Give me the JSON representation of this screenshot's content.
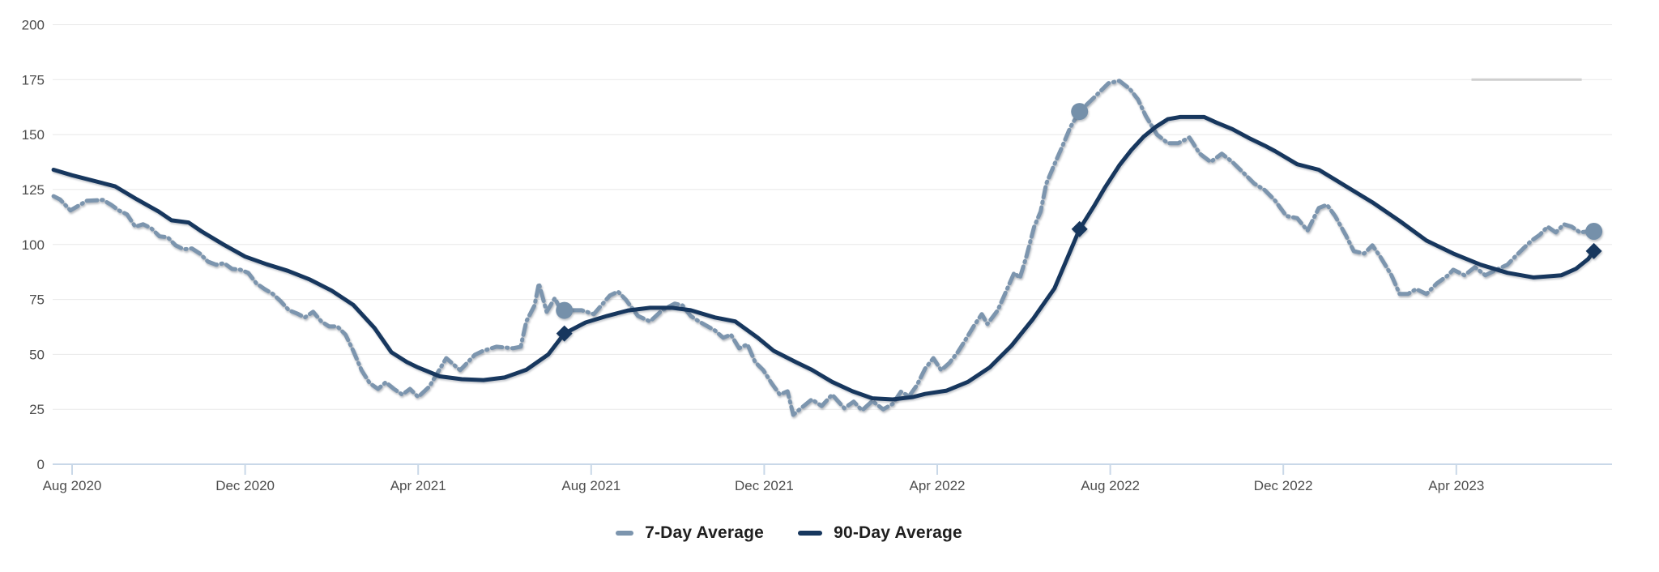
{
  "chart_data": {
    "type": "line",
    "title": "",
    "x_axis": {
      "tick_labels": [
        "Aug 2020",
        "Dec 2020",
        "Apr 2021",
        "Aug 2021",
        "Dec 2021",
        "Apr 2022",
        "Aug 2022",
        "Dec 2022",
        "Apr 2023"
      ],
      "tick_positions_months": [
        0,
        4,
        8,
        12,
        16,
        20,
        24,
        28,
        32
      ],
      "range_months": [
        -0.45,
        35.6
      ]
    },
    "y_axis": {
      "min": 0,
      "max": 200,
      "step": 25,
      "tick_labels": [
        "0",
        "25",
        "50",
        "75",
        "100",
        "125",
        "150",
        "175",
        "200"
      ]
    },
    "grid": true,
    "legend_position": "bottom",
    "series": [
      {
        "name": "7-Day Average",
        "style": "dashed",
        "color": "#7C95AE",
        "points": [
          [
            -0.43,
            122
          ],
          [
            -0.28,
            120.5
          ],
          [
            -0.04,
            115.5
          ],
          [
            0.34,
            119.9
          ],
          [
            0.71,
            120.3
          ],
          [
            0.9,
            118.1
          ],
          [
            1.08,
            115.5
          ],
          [
            1.27,
            113.7
          ],
          [
            1.46,
            108.1
          ],
          [
            1.64,
            109.2
          ],
          [
            1.83,
            107.4
          ],
          [
            2.02,
            103.7
          ],
          [
            2.21,
            103.3
          ],
          [
            2.39,
            99.6
          ],
          [
            2.58,
            97.8
          ],
          [
            2.77,
            98.2
          ],
          [
            2.95,
            95.9
          ],
          [
            3.14,
            92.2
          ],
          [
            3.33,
            90.8
          ],
          [
            3.51,
            91.5
          ],
          [
            3.7,
            88.9
          ],
          [
            3.89,
            88.5
          ],
          [
            4.07,
            87.1
          ],
          [
            4.26,
            82.3
          ],
          [
            4.45,
            79.7
          ],
          [
            4.64,
            77.5
          ],
          [
            4.82,
            74.2
          ],
          [
            5.01,
            70.1
          ],
          [
            5.2,
            68.6
          ],
          [
            5.38,
            66.8
          ],
          [
            5.57,
            69.4
          ],
          [
            5.76,
            65
          ],
          [
            5.94,
            62.7
          ],
          [
            6.13,
            62.7
          ],
          [
            6.32,
            59
          ],
          [
            6.5,
            51.6
          ],
          [
            6.69,
            42.8
          ],
          [
            6.88,
            36.9
          ],
          [
            7.07,
            34.3
          ],
          [
            7.25,
            37.3
          ],
          [
            7.44,
            34.3
          ],
          [
            7.63,
            31.7
          ],
          [
            7.81,
            34.3
          ],
          [
            8.0,
            30.6
          ],
          [
            8.26,
            35.4
          ],
          [
            8.65,
            48.3
          ],
          [
            8.97,
            42.8
          ],
          [
            9.31,
            49.8
          ],
          [
            9.5,
            51.6
          ],
          [
            9.81,
            53.5
          ],
          [
            10.19,
            52.8
          ],
          [
            10.37,
            53.5
          ],
          [
            10.5,
            65
          ],
          [
            10.69,
            72.3
          ],
          [
            10.79,
            82.3
          ],
          [
            10.97,
            69.4
          ],
          [
            11.16,
            75.6
          ],
          [
            11.27,
            71.2
          ],
          [
            11.4,
            70.1
          ],
          [
            11.78,
            70.1
          ],
          [
            12.06,
            68.3
          ],
          [
            12.43,
            76.8
          ],
          [
            12.62,
            78.6
          ],
          [
            12.8,
            74.9
          ],
          [
            13.08,
            67.5
          ],
          [
            13.36,
            65
          ],
          [
            13.64,
            70.1
          ],
          [
            13.93,
            73.1
          ],
          [
            14.11,
            72.3
          ],
          [
            14.3,
            67.5
          ],
          [
            14.49,
            65
          ],
          [
            14.86,
            60.9
          ],
          [
            15.05,
            57.6
          ],
          [
            15.23,
            59
          ],
          [
            15.42,
            52.8
          ],
          [
            15.61,
            54.6
          ],
          [
            15.79,
            46.5
          ],
          [
            15.98,
            42.8
          ],
          [
            16.17,
            36.9
          ],
          [
            16.36,
            31.7
          ],
          [
            16.54,
            33.2
          ],
          [
            16.67,
            22.5
          ],
          [
            16.88,
            26
          ],
          [
            17.1,
            29.5
          ],
          [
            17.33,
            26.5
          ],
          [
            17.57,
            31.7
          ],
          [
            17.85,
            25.5
          ],
          [
            18.07,
            28.5
          ],
          [
            18.26,
            24.5
          ],
          [
            18.5,
            28.8
          ],
          [
            18.75,
            25
          ],
          [
            18.97,
            27.5
          ],
          [
            19.16,
            33
          ],
          [
            19.35,
            31
          ],
          [
            19.53,
            36
          ],
          [
            19.72,
            43.5
          ],
          [
            19.91,
            48.3
          ],
          [
            20.09,
            42.8
          ],
          [
            20.28,
            46.1
          ],
          [
            20.47,
            50.9
          ],
          [
            20.65,
            56.5
          ],
          [
            20.84,
            62.7
          ],
          [
            21.03,
            68.3
          ],
          [
            21.16,
            63.8
          ],
          [
            21.4,
            70.1
          ],
          [
            21.59,
            78.6
          ],
          [
            21.78,
            87.1
          ],
          [
            21.91,
            84.8
          ],
          [
            22.06,
            94.5
          ],
          [
            22.24,
            108
          ],
          [
            22.39,
            115
          ],
          [
            22.52,
            127.7
          ],
          [
            22.71,
            136.5
          ],
          [
            22.9,
            145
          ],
          [
            23.08,
            153.5
          ],
          [
            23.29,
            160.5
          ],
          [
            23.64,
            167.2
          ],
          [
            23.96,
            173.4
          ],
          [
            24.21,
            174.5
          ],
          [
            24.45,
            170.8
          ],
          [
            24.64,
            166
          ],
          [
            24.82,
            158.5
          ],
          [
            25.08,
            150
          ],
          [
            25.33,
            146.1
          ],
          [
            25.57,
            146.1
          ],
          [
            25.83,
            148.7
          ],
          [
            26.07,
            141.3
          ],
          [
            26.32,
            137.6
          ],
          [
            26.58,
            141.3
          ],
          [
            26.82,
            137.6
          ],
          [
            27.07,
            132.8
          ],
          [
            27.33,
            127.7
          ],
          [
            27.57,
            124.8
          ],
          [
            27.81,
            120
          ],
          [
            28.07,
            113
          ],
          [
            28.32,
            112
          ],
          [
            28.56,
            106.3
          ],
          [
            28.82,
            116.6
          ],
          [
            29.01,
            118.1
          ],
          [
            29.2,
            112.9
          ],
          [
            29.44,
            104.4
          ],
          [
            29.63,
            97
          ],
          [
            29.87,
            95.9
          ],
          [
            30.06,
            99.6
          ],
          [
            30.24,
            94.5
          ],
          [
            30.5,
            86
          ],
          [
            30.69,
            77.5
          ],
          [
            30.88,
            77.5
          ],
          [
            31.07,
            79.7
          ],
          [
            31.31,
            77.5
          ],
          [
            31.55,
            82.3
          ],
          [
            31.81,
            86
          ],
          [
            31.93,
            88.5
          ],
          [
            32.19,
            86
          ],
          [
            32.43,
            89.7
          ],
          [
            32.67,
            86
          ],
          [
            32.93,
            88.5
          ],
          [
            33.18,
            90.8
          ],
          [
            33.36,
            94.5
          ],
          [
            33.55,
            98.2
          ],
          [
            33.74,
            101.8
          ],
          [
            33.93,
            104.4
          ],
          [
            34.11,
            108.1
          ],
          [
            34.3,
            105.5
          ],
          [
            34.49,
            109.2
          ],
          [
            34.67,
            108.1
          ],
          [
            34.86,
            105.5
          ],
          [
            35.18,
            106.3
          ]
        ]
      },
      {
        "name": "90-Day Average",
        "style": "solid",
        "color": "#17375E",
        "points": [
          [
            -0.43,
            134
          ],
          [
            0,
            131.5
          ],
          [
            0.99,
            126.5
          ],
          [
            1.5,
            120.5
          ],
          [
            2.0,
            115
          ],
          [
            2.3,
            111
          ],
          [
            2.69,
            110
          ],
          [
            2.99,
            106
          ],
          [
            3.5,
            100
          ],
          [
            4.0,
            94.5
          ],
          [
            4.5,
            91
          ],
          [
            4.99,
            88
          ],
          [
            5.5,
            84
          ],
          [
            6.0,
            79
          ],
          [
            6.5,
            72.5
          ],
          [
            6.99,
            62
          ],
          [
            7.38,
            51
          ],
          [
            7.74,
            46.5
          ],
          [
            8.0,
            44
          ],
          [
            8.5,
            40
          ],
          [
            9.01,
            38.7
          ],
          [
            9.51,
            38.3
          ],
          [
            10.0,
            39.5
          ],
          [
            10.5,
            43
          ],
          [
            11.01,
            50
          ],
          [
            11.38,
            59.5
          ],
          [
            11.87,
            64.5
          ],
          [
            12.37,
            67.5
          ],
          [
            12.86,
            70
          ],
          [
            13.36,
            71.2
          ],
          [
            13.87,
            71.2
          ],
          [
            14.3,
            70.1
          ],
          [
            14.86,
            66.8
          ],
          [
            15.33,
            65
          ],
          [
            15.85,
            57.6
          ],
          [
            16.22,
            51.6
          ],
          [
            16.73,
            46.5
          ],
          [
            17.1,
            43
          ],
          [
            17.57,
            37.5
          ],
          [
            18.04,
            33.2
          ],
          [
            18.5,
            30
          ],
          [
            18.97,
            29.5
          ],
          [
            19.44,
            30.6
          ],
          [
            19.72,
            32
          ],
          [
            20.22,
            33.5
          ],
          [
            20.71,
            37.5
          ],
          [
            21.21,
            44
          ],
          [
            21.72,
            54
          ],
          [
            22.21,
            66
          ],
          [
            22.71,
            80
          ],
          [
            23.29,
            107
          ],
          [
            23.64,
            118
          ],
          [
            23.88,
            126
          ],
          [
            24.21,
            136
          ],
          [
            24.49,
            143
          ],
          [
            24.77,
            149
          ],
          [
            25.05,
            153.5
          ],
          [
            25.33,
            157
          ],
          [
            25.61,
            158
          ],
          [
            25.89,
            158
          ],
          [
            26.17,
            158
          ],
          [
            26.45,
            155.5
          ],
          [
            26.82,
            152.5
          ],
          [
            27.2,
            148.5
          ],
          [
            27.57,
            145
          ],
          [
            27.81,
            142.5
          ],
          [
            28.32,
            136.5
          ],
          [
            28.82,
            134
          ],
          [
            29.44,
            126.6
          ],
          [
            30.06,
            119.2
          ],
          [
            30.69,
            110.7
          ],
          [
            31.31,
            101.8
          ],
          [
            31.93,
            95.9
          ],
          [
            32.56,
            90.8
          ],
          [
            33.18,
            87.1
          ],
          [
            33.79,
            85
          ],
          [
            34.43,
            86
          ],
          [
            34.77,
            89
          ],
          [
            35.05,
            93.4
          ],
          [
            35.18,
            97
          ]
        ]
      }
    ],
    "markers": [
      {
        "month": 11.38,
        "seven_day_value": 70,
        "ninety_day_value": 59.5
      },
      {
        "month": 23.29,
        "seven_day_value": 160.5,
        "ninety_day_value": 107
      },
      {
        "month": 35.18,
        "seven_day_value": 106,
        "ninety_day_value": 97
      }
    ],
    "annotation_segment": {
      "y_value": 175,
      "x_from_month": 32.35,
      "x_to_month": 34.9,
      "color": "#CFCFCF"
    }
  },
  "legend": {
    "items": [
      {
        "label": "7-Day Average",
        "swatch": "dashed-line"
      },
      {
        "label": "90-Day Average",
        "swatch": "solid-line"
      }
    ]
  },
  "colors": {
    "background": "#FFFFFF",
    "gridline": "#E8E8E8",
    "axis_line": "#C9D8E8",
    "tick_mark": "#C9D8E8",
    "axis_label_text": "#4D4D4D",
    "legend_text": "#1F1F1F",
    "seven_day_line": "#7C95AE",
    "ninety_day_line": "#17375E",
    "circle_marker": "#7590AA",
    "diamond_marker": "#17375E"
  }
}
